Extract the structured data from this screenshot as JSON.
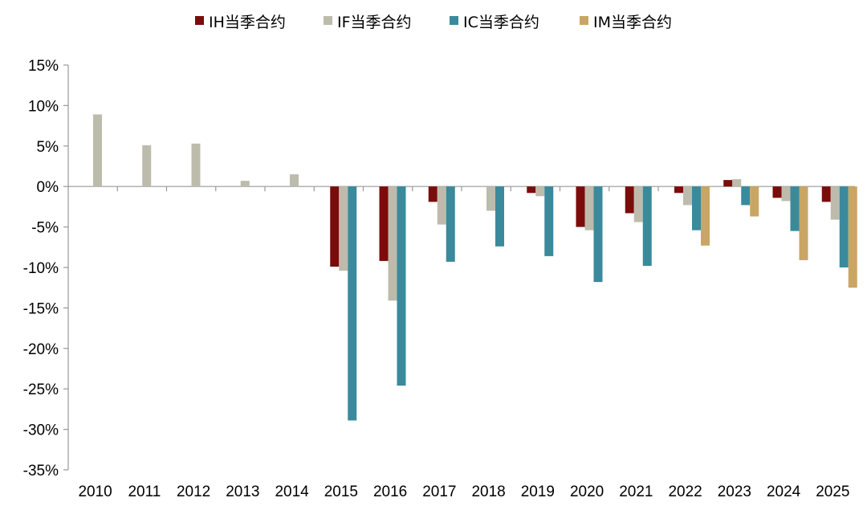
{
  "chart_data": {
    "type": "bar",
    "categories": [
      "2010",
      "2011",
      "2012",
      "2013",
      "2014",
      "2015",
      "2016",
      "2017",
      "2018",
      "2019",
      "2020",
      "2021",
      "2022",
      "2023",
      "2024",
      "2025"
    ],
    "series": [
      {
        "name": "IH当季合约",
        "color": "#7b0c0c",
        "values": [
          null,
          null,
          null,
          null,
          null,
          -9.9,
          -9.2,
          -1.9,
          null,
          -0.8,
          -5.0,
          -3.3,
          -0.8,
          0.8,
          -1.4,
          -1.9
        ]
      },
      {
        "name": "IF当季合约",
        "color": "#bdbcac",
        "values": [
          8.9,
          5.1,
          5.3,
          0.7,
          1.5,
          -10.4,
          -14.1,
          -4.7,
          -3.0,
          -1.2,
          -5.4,
          -4.4,
          -2.3,
          0.9,
          -1.8,
          -4.1
        ]
      },
      {
        "name": "IC当季合约",
        "color": "#3a8a9c",
        "values": [
          null,
          null,
          null,
          null,
          null,
          -28.9,
          -24.6,
          -9.3,
          -7.4,
          -8.6,
          -11.8,
          -9.8,
          -5.4,
          -2.3,
          -5.5,
          -10.0
        ]
      },
      {
        "name": "IM当季合约",
        "color": "#c9a664",
        "values": [
          null,
          null,
          null,
          null,
          null,
          null,
          null,
          null,
          null,
          null,
          null,
          null,
          -7.3,
          -3.7,
          -9.1,
          -12.5
        ]
      }
    ],
    "yticks": [
      "15%",
      "10%",
      "5%",
      "0%",
      "-5%",
      "-10%",
      "-15%",
      "-20%",
      "-25%",
      "-30%",
      "-35%"
    ],
    "ylim": [
      -35,
      15
    ],
    "title": "",
    "xlabel": "",
    "ylabel": "",
    "legend_position": "top",
    "grid": false
  }
}
